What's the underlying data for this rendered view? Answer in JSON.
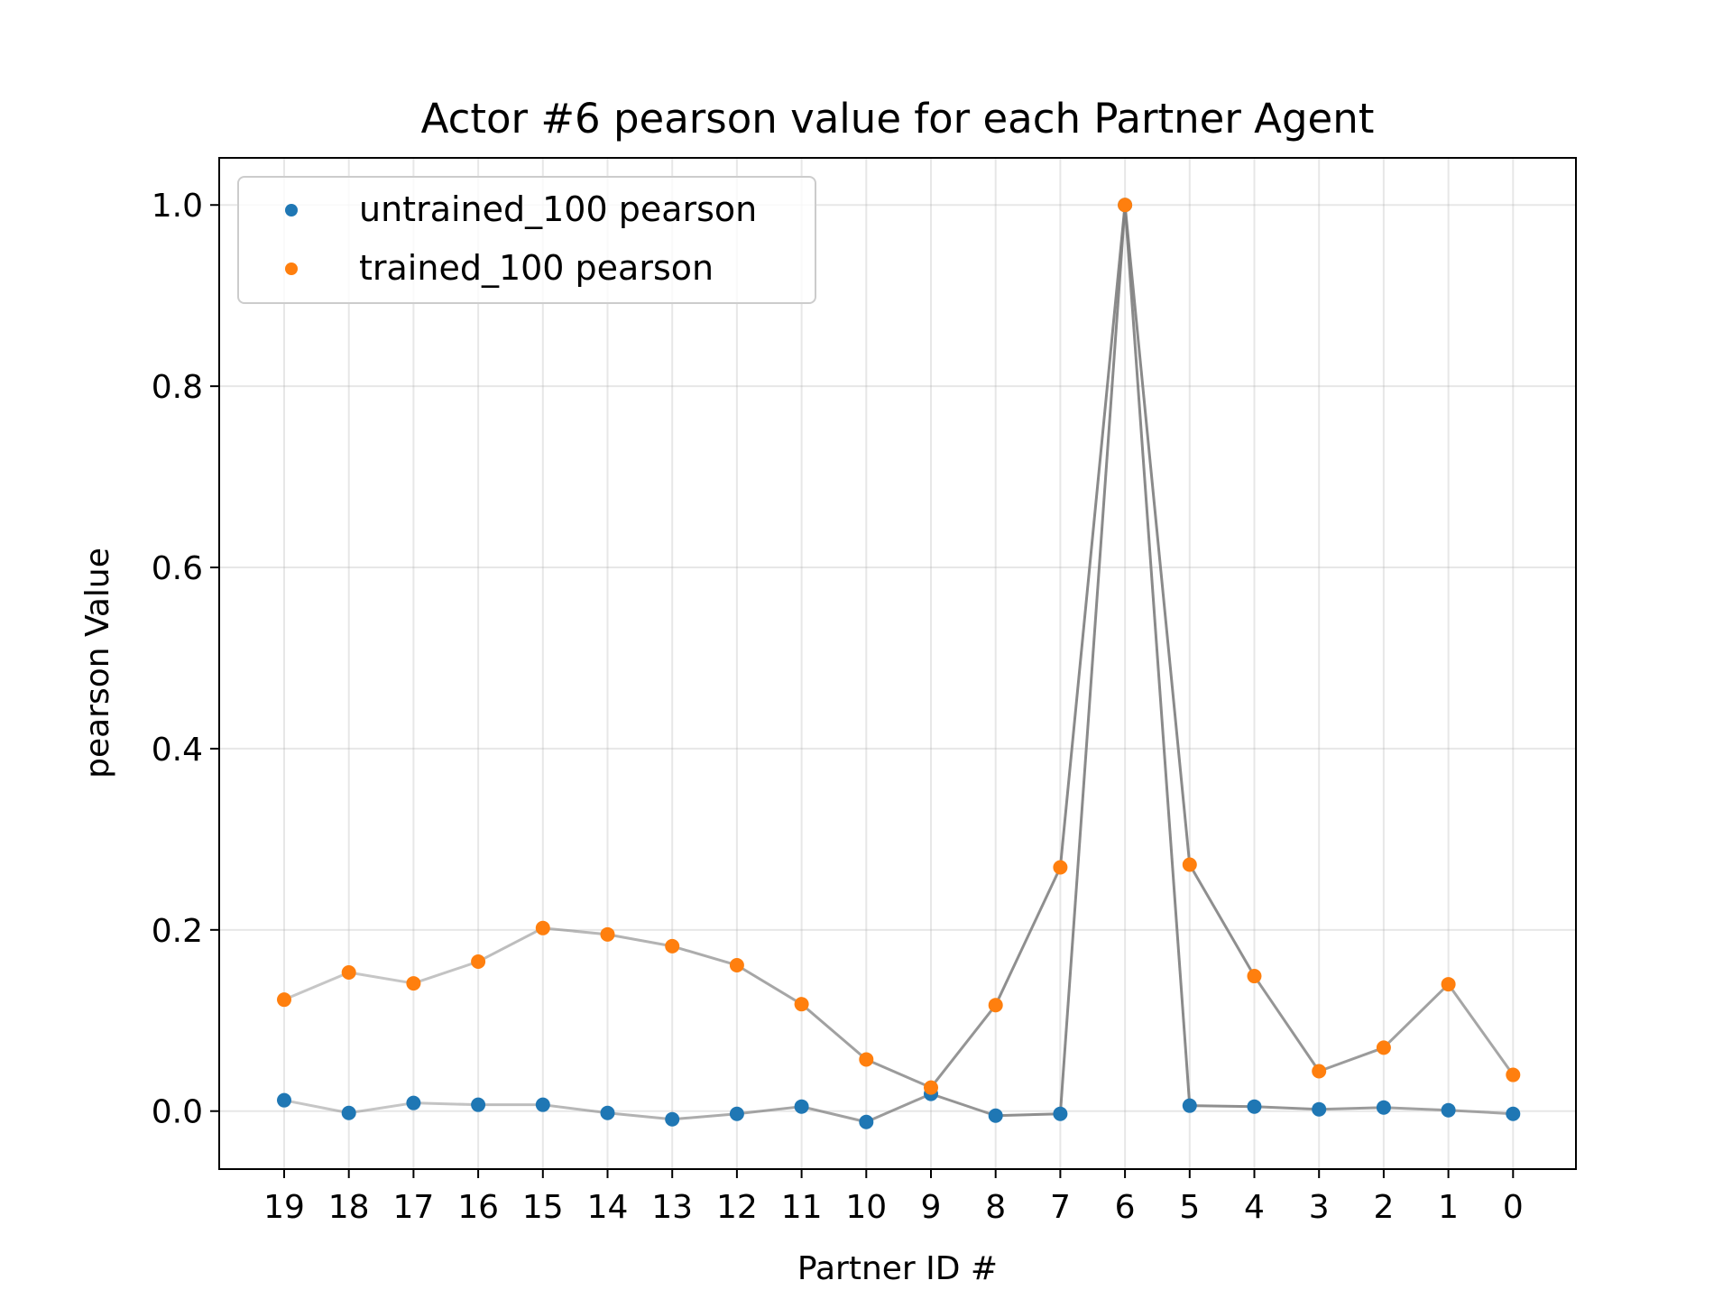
{
  "chart_data": {
    "type": "scatter",
    "title": "Actor #6 pearson value for each Partner Agent",
    "xlabel": "Partner ID #",
    "ylabel": "pearson Value",
    "categories": [
      "19",
      "18",
      "17",
      "16",
      "15",
      "14",
      "13",
      "12",
      "11",
      "10",
      "9",
      "8",
      "7",
      "6",
      "5",
      "4",
      "3",
      "2",
      "1",
      "0"
    ],
    "ylim": [
      -0.064,
      1.052
    ],
    "yticks": [
      "0.0",
      "0.2",
      "0.4",
      "0.6",
      "0.8",
      "1.0"
    ],
    "grid": true,
    "legend_position": "upper-left",
    "connector_color": "#808080",
    "series": [
      {
        "name": "untrained_100 pearson",
        "color": "#1f77b4",
        "values": [
          0.012,
          -0.002,
          0.009,
          0.007,
          0.007,
          -0.002,
          -0.009,
          -0.003,
          0.005,
          -0.012,
          0.019,
          -0.005,
          -0.003,
          1.0,
          0.006,
          0.005,
          0.002,
          0.004,
          0.001,
          -0.003
        ]
      },
      {
        "name": "trained_100 pearson",
        "color": "#ff7f0e",
        "values": [
          0.123,
          0.153,
          0.141,
          0.165,
          0.202,
          0.195,
          0.182,
          0.161,
          0.118,
          0.057,
          0.026,
          0.117,
          0.269,
          1.0,
          0.272,
          0.149,
          0.044,
          0.07,
          0.14,
          0.04
        ]
      }
    ]
  }
}
